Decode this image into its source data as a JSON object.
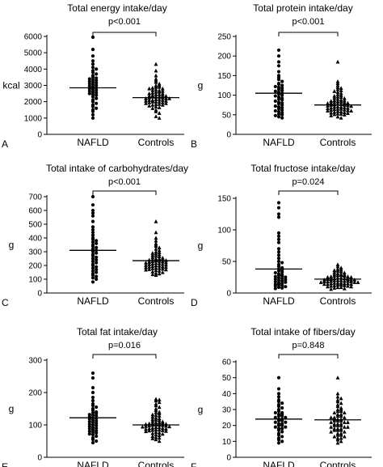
{
  "chart_data": [
    {
      "panel": "A",
      "type": "scatter",
      "title": "Total energy intake/day",
      "ylabel": "kcal",
      "ylim": [
        0,
        6000
      ],
      "yticks": [
        0,
        1000,
        2000,
        3000,
        4000,
        5000,
        6000
      ],
      "categories": [
        "NAFLD",
        "Controls"
      ],
      "p_label": "p<0.001",
      "means": [
        2850,
        2250
      ],
      "series": [
        {
          "name": "NAFLD",
          "marker": "circle",
          "values": [
            5950,
            5200,
            4800,
            4500,
            4300,
            4100,
            4000,
            3900,
            3800,
            3700,
            3600,
            3500,
            3450,
            3400,
            3350,
            3300,
            3250,
            3200,
            3150,
            3100,
            3050,
            3000,
            2950,
            2900,
            2850,
            2800,
            2750,
            2700,
            2650,
            2600,
            2550,
            2500,
            2450,
            2400,
            2300,
            2200,
            2100,
            2000,
            1900,
            1800,
            1700,
            1600,
            1500,
            1400,
            1200,
            1000
          ]
        },
        {
          "name": "Controls",
          "marker": "triangle",
          "values": [
            4300,
            3900,
            3600,
            3400,
            3300,
            3200,
            3100,
            3000,
            3000,
            2900,
            2900,
            2850,
            2800,
            2800,
            2750,
            2700,
            2700,
            2650,
            2600,
            2600,
            2550,
            2500,
            2500,
            2450,
            2450,
            2400,
            2400,
            2350,
            2350,
            2300,
            2300,
            2300,
            2250,
            2250,
            2200,
            2200,
            2200,
            2150,
            2150,
            2100,
            2100,
            2100,
            2050,
            2050,
            2000,
            2000,
            2000,
            1950,
            1950,
            1900,
            1900,
            1850,
            1850,
            1800,
            1800,
            1750,
            1700,
            1650,
            1600,
            1500,
            1400,
            1300,
            1100,
            1000
          ]
        }
      ]
    },
    {
      "panel": "B",
      "type": "scatter",
      "title": "Total protein intake/day",
      "ylabel": "g",
      "ylim": [
        0,
        250
      ],
      "yticks": [
        0,
        50,
        100,
        150,
        200,
        250
      ],
      "categories": [
        "NAFLD",
        "Controls"
      ],
      "p_label": "p<0.001",
      "means": [
        105,
        75
      ],
      "series": [
        {
          "name": "NAFLD",
          "marker": "circle",
          "values": [
            215,
            200,
            185,
            175,
            160,
            150,
            145,
            140,
            135,
            130,
            128,
            125,
            122,
            120,
            118,
            115,
            112,
            110,
            108,
            105,
            103,
            100,
            98,
            95,
            92,
            90,
            88,
            85,
            82,
            80,
            78,
            75,
            72,
            70,
            68,
            65,
            62,
            60,
            58,
            55,
            52,
            50,
            48,
            45,
            42
          ]
        },
        {
          "name": "Controls",
          "marker": "triangle",
          "values": [
            185,
            135,
            130,
            125,
            120,
            118,
            115,
            112,
            110,
            108,
            105,
            102,
            100,
            98,
            96,
            95,
            93,
            92,
            90,
            88,
            87,
            86,
            85,
            84,
            83,
            82,
            81,
            80,
            80,
            79,
            78,
            77,
            76,
            75,
            75,
            74,
            73,
            72,
            71,
            70,
            70,
            69,
            68,
            67,
            66,
            65,
            65,
            64,
            63,
            62,
            61,
            60,
            60,
            59,
            58,
            57,
            56,
            55,
            54,
            53,
            52,
            51,
            50,
            48,
            45,
            42
          ]
        }
      ]
    },
    {
      "panel": "C",
      "type": "scatter",
      "title": "Total intake of carbohydrates/day",
      "ylabel": "g",
      "ylim": [
        0,
        700
      ],
      "yticks": [
        0,
        100,
        200,
        300,
        400,
        500,
        600,
        700
      ],
      "categories": [
        "NAFLD",
        "Controls"
      ],
      "p_label": "p<0.001",
      "means": [
        310,
        235
      ],
      "series": [
        {
          "name": "NAFLD",
          "marker": "circle",
          "values": [
            700,
            640,
            600,
            580,
            560,
            520,
            480,
            460,
            440,
            420,
            400,
            390,
            380,
            370,
            360,
            350,
            340,
            330,
            320,
            310,
            300,
            290,
            280,
            270,
            260,
            250,
            240,
            230,
            220,
            210,
            200,
            190,
            180,
            170,
            160,
            150,
            140,
            130,
            120,
            110,
            100,
            80
          ]
        },
        {
          "name": "Controls",
          "marker": "triangle",
          "values": [
            520,
            440,
            400,
            380,
            360,
            350,
            340,
            330,
            320,
            310,
            300,
            295,
            290,
            285,
            280,
            275,
            270,
            265,
            260,
            255,
            250,
            248,
            245,
            242,
            240,
            238,
            235,
            232,
            230,
            228,
            225,
            222,
            220,
            218,
            215,
            212,
            210,
            208,
            205,
            202,
            200,
            198,
            195,
            192,
            190,
            188,
            185,
            182,
            180,
            178,
            175,
            172,
            170,
            168,
            165,
            160,
            155,
            150,
            145,
            140,
            135,
            130
          ]
        }
      ]
    },
    {
      "panel": "D",
      "type": "scatter",
      "title": "Total fructose intake/day",
      "ylabel": "g",
      "ylim": [
        0,
        150
      ],
      "yticks": [
        0,
        50,
        100,
        150
      ],
      "categories": [
        "NAFLD",
        "Controls"
      ],
      "p_label": "p=0.024",
      "means": [
        38,
        22
      ],
      "series": [
        {
          "name": "NAFLD",
          "marker": "circle",
          "values": [
            143,
            135,
            125,
            120,
            95,
            90,
            85,
            80,
            70,
            65,
            60,
            55,
            50,
            48,
            45,
            42,
            40,
            38,
            36,
            35,
            33,
            32,
            30,
            29,
            28,
            27,
            26,
            25,
            24,
            23,
            22,
            21,
            20,
            19,
            18,
            17,
            16,
            15,
            14,
            13,
            12,
            11,
            10,
            9,
            8,
            7
          ]
        },
        {
          "name": "Controls",
          "marker": "triangle",
          "values": [
            45,
            42,
            40,
            38,
            37,
            36,
            35,
            34,
            33,
            32,
            31,
            30,
            30,
            29,
            28,
            28,
            27,
            27,
            26,
            26,
            25,
            25,
            24,
            24,
            23,
            23,
            22,
            22,
            22,
            21,
            21,
            21,
            20,
            20,
            20,
            19,
            19,
            19,
            18,
            18,
            18,
            17,
            17,
            17,
            16,
            16,
            16,
            15,
            15,
            15,
            14,
            14,
            14,
            13,
            13,
            12,
            12,
            11,
            11,
            10,
            10,
            9,
            9,
            8,
            7,
            6
          ]
        }
      ]
    },
    {
      "panel": "E",
      "type": "scatter",
      "title": "Total fat intake/day",
      "ylabel": "g",
      "ylim": [
        0,
        300
      ],
      "yticks": [
        0,
        100,
        200,
        300
      ],
      "categories": [
        "NAFLD",
        "Controls"
      ],
      "p_label": "p=0.016",
      "means": [
        122,
        100
      ],
      "series": [
        {
          "name": "NAFLD",
          "marker": "circle",
          "values": [
            260,
            245,
            215,
            200,
            185,
            175,
            165,
            160,
            155,
            150,
            145,
            140,
            138,
            135,
            132,
            130,
            128,
            125,
            122,
            120,
            118,
            115,
            112,
            110,
            108,
            105,
            102,
            100,
            98,
            95,
            92,
            90,
            88,
            85,
            82,
            80,
            78,
            75,
            72,
            70,
            65,
            60,
            55,
            50,
            45
          ]
        },
        {
          "name": "Controls",
          "marker": "triangle",
          "values": [
            180,
            178,
            175,
            170,
            165,
            160,
            155,
            150,
            145,
            140,
            138,
            135,
            132,
            130,
            128,
            125,
            122,
            120,
            118,
            116,
            114,
            112,
            110,
            108,
            107,
            106,
            105,
            104,
            103,
            102,
            101,
            100,
            100,
            99,
            98,
            97,
            96,
            95,
            94,
            93,
            92,
            91,
            90,
            89,
            88,
            87,
            86,
            85,
            84,
            83,
            82,
            81,
            80,
            78,
            76,
            74,
            72,
            70,
            68,
            65,
            62,
            60,
            58,
            55,
            50
          ]
        }
      ]
    },
    {
      "panel": "F",
      "type": "scatter",
      "title": "Total intake of fibers/day",
      "ylabel": "g",
      "ylim": [
        0,
        60
      ],
      "yticks": [
        0,
        10,
        20,
        30,
        40,
        50,
        60
      ],
      "categories": [
        "NAFLD",
        "Controls"
      ],
      "p_label": "p=0.848",
      "means": [
        24,
        23.5
      ],
      "series": [
        {
          "name": "NAFLD",
          "marker": "circle",
          "values": [
            50,
            43,
            40,
            38,
            36,
            35,
            34,
            33,
            32,
            31,
            30,
            29,
            28,
            28,
            27,
            27,
            26,
            26,
            25,
            25,
            24,
            24,
            23,
            23,
            22,
            22,
            21,
            21,
            20,
            20,
            19,
            19,
            18,
            18,
            17,
            16,
            15,
            14,
            13,
            12,
            11,
            10,
            9
          ]
        },
        {
          "name": "Controls",
          "marker": "triangle",
          "values": [
            50,
            40,
            38,
            37,
            36,
            35,
            34,
            33,
            32,
            31,
            30,
            30,
            29,
            29,
            28,
            28,
            27,
            27,
            26,
            26,
            25,
            25,
            25,
            24,
            24,
            24,
            23,
            23,
            23,
            22,
            22,
            22,
            21,
            21,
            21,
            20,
            20,
            20,
            19,
            19,
            19,
            18,
            18,
            18,
            17,
            17,
            17,
            16,
            16,
            15,
            15,
            14,
            14,
            13,
            13,
            12,
            12,
            11,
            10,
            9
          ]
        }
      ]
    }
  ]
}
